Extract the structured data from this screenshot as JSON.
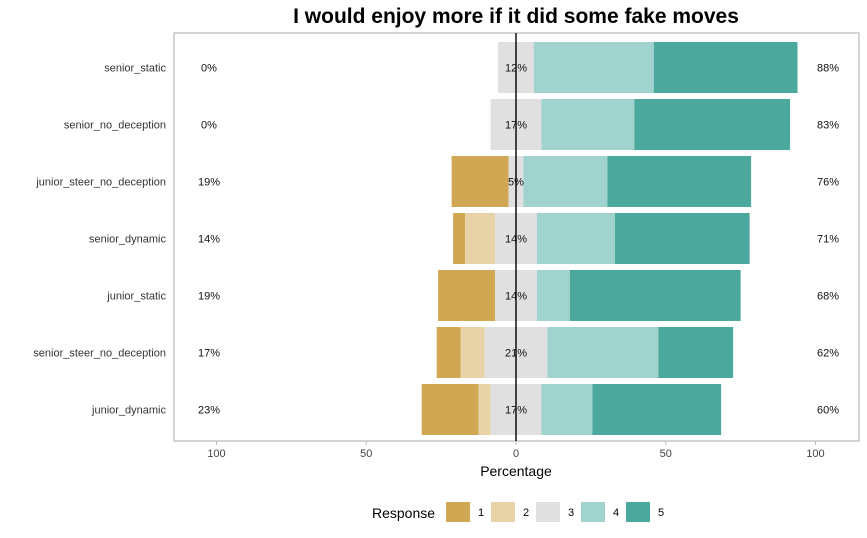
{
  "chart_data": {
    "type": "bar",
    "subtype": "diverging-stacked-likert",
    "title": "I would enjoy more if it did some fake moves",
    "xlabel": "Percentage",
    "ylabel": "",
    "xlim": [
      -100,
      100
    ],
    "x_ticks": [
      {
        "value": -100,
        "label": "100"
      },
      {
        "value": -50,
        "label": "50"
      },
      {
        "value": 0,
        "label": "0"
      },
      {
        "value": 50,
        "label": "50"
      },
      {
        "value": 100,
        "label": "100"
      }
    ],
    "grid": false,
    "legend": {
      "title": "Response",
      "position": "bottom",
      "levels": [
        "1",
        "2",
        "3",
        "4",
        "5"
      ],
      "colors": [
        "#D0A752",
        "#E8D3A6",
        "#E0E0E0",
        "#A0D3CD",
        "#4BA89C"
      ]
    },
    "categories": [
      "senior_static",
      "senior_no_deception",
      "junior_steer_no_deception",
      "senior_dynamic",
      "junior_static",
      "senior_steer_no_deception",
      "junior_dynamic"
    ],
    "rows": [
      {
        "category": "senior_static",
        "values": [
          0,
          0,
          12,
          40,
          48
        ],
        "left_label": "0%",
        "center_label": "12%",
        "right_label": "88%"
      },
      {
        "category": "senior_no_deception",
        "values": [
          0,
          0,
          17,
          31,
          52
        ],
        "left_label": "0%",
        "center_label": "17%",
        "right_label": "83%"
      },
      {
        "category": "junior_steer_no_deception",
        "values": [
          19,
          0,
          5,
          28,
          48
        ],
        "left_label": "19%",
        "center_label": "5%",
        "right_label": "76%"
      },
      {
        "category": "senior_dynamic",
        "values": [
          4,
          10,
          14,
          26,
          45
        ],
        "left_label": "14%",
        "center_label": "14%",
        "right_label": "71%"
      },
      {
        "category": "junior_static",
        "values": [
          19,
          0,
          14,
          11,
          57
        ],
        "left_label": "19%",
        "center_label": "14%",
        "right_label": "68%"
      },
      {
        "category": "senior_steer_no_deception",
        "values": [
          8,
          8,
          21,
          37,
          25
        ],
        "left_label": "17%",
        "center_label": "21%",
        "right_label": "62%"
      },
      {
        "category": "junior_dynamic",
        "values": [
          19,
          4,
          17,
          17,
          43
        ],
        "left_label": "23%",
        "center_label": "17%",
        "right_label": "60%"
      }
    ]
  }
}
